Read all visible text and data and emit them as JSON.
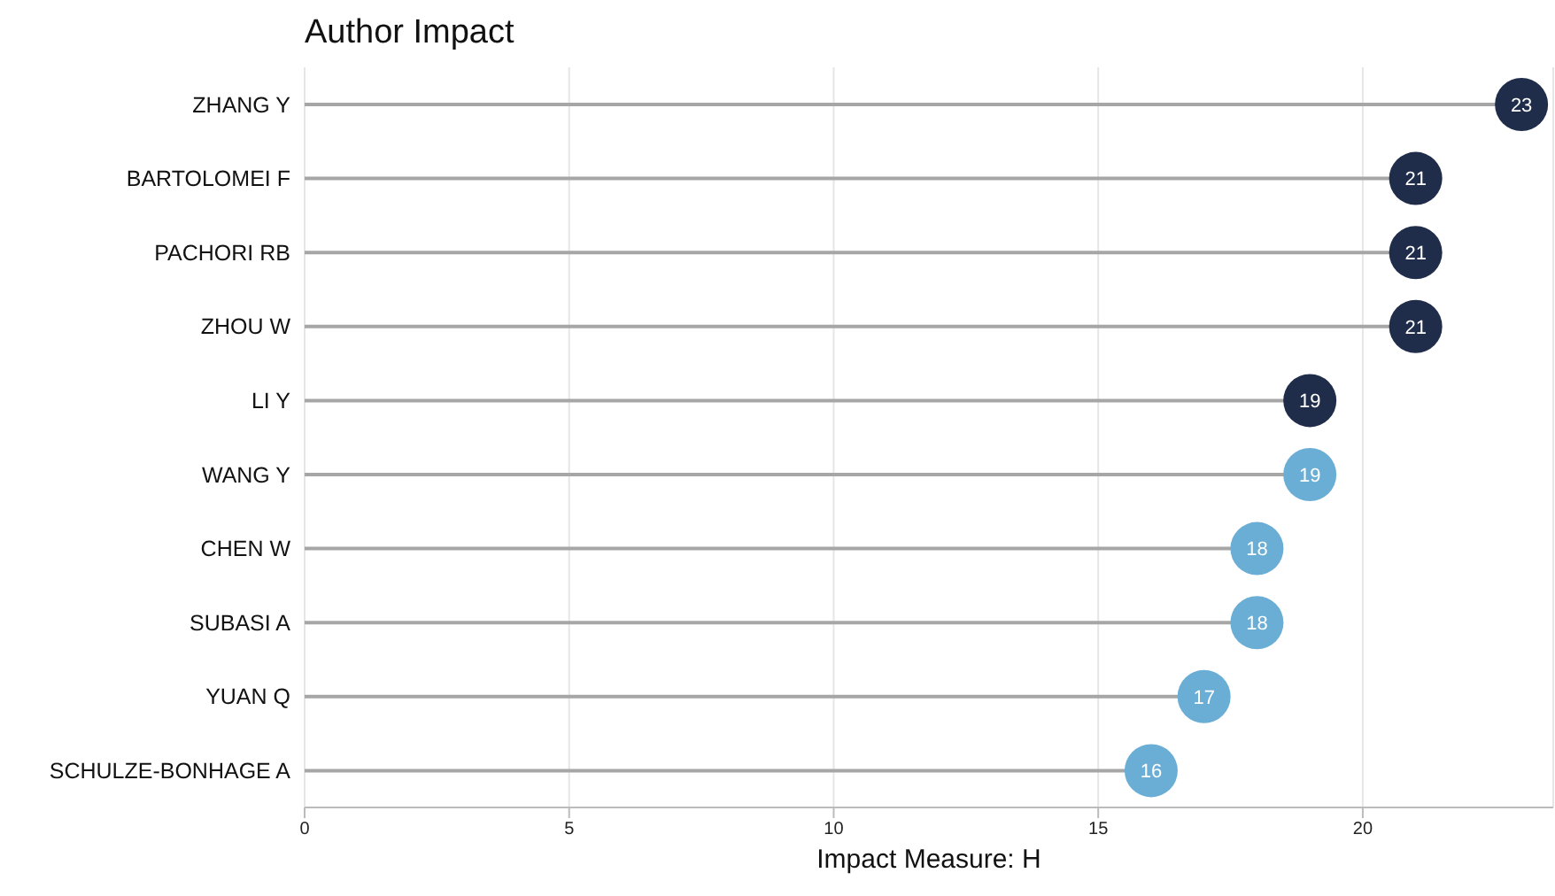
{
  "chart_data": {
    "type": "lollipop",
    "orientation": "horizontal",
    "title": "Author Impact",
    "xlabel": "Impact Measure: H",
    "categories": [
      "ZHANG Y",
      "BARTOLOMEI F",
      "PACHORI RB",
      "ZHOU W",
      "LI Y",
      "WANG Y",
      "CHEN W",
      "SUBASI A",
      "YUAN Q",
      "SCHULZE-BONHAGE A"
    ],
    "values": [
      23,
      21,
      21,
      21,
      19,
      19,
      18,
      18,
      17,
      16
    ],
    "colors": [
      "#1f2d4a",
      "#1f2d4a",
      "#1f2d4a",
      "#1f2d4a",
      "#1f2d4a",
      "#6aaed6",
      "#6aaed6",
      "#6aaed6",
      "#6aaed6",
      "#6aaed6"
    ],
    "xlim": [
      0,
      23.6
    ],
    "xticks": [
      0,
      5,
      10,
      15,
      20
    ],
    "grid": "x",
    "data_labels": true
  }
}
